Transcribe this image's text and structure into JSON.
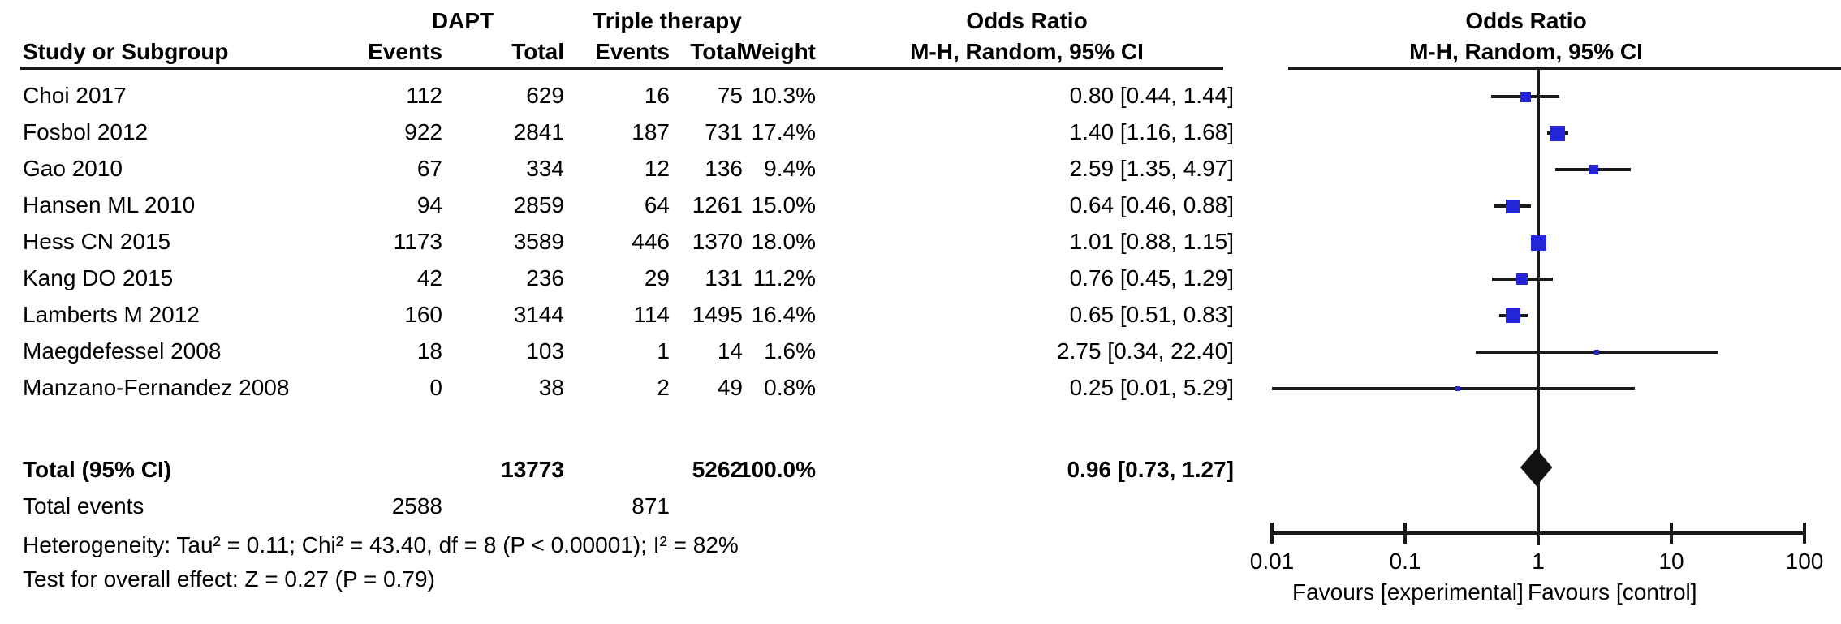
{
  "table": {
    "headers": {
      "study": "Study or Subgroup",
      "group1": "DAPT",
      "group2": "Triple therapy",
      "events": "Events",
      "total": "Total",
      "weight": "Weight",
      "or_title_left": "Odds Ratio",
      "or_sub_left": "M-H, Random, 95% CI",
      "or_title_right": "Odds Ratio",
      "or_sub_right": "M-H, Random, 95% CI"
    },
    "rows": [
      {
        "study": "Choi 2017",
        "e1": "112",
        "t1": "629",
        "e2": "16",
        "t2": "75",
        "weight": "10.3%",
        "or_text": "0.80 [0.44, 1.44]"
      },
      {
        "study": "Fosbol 2012",
        "e1": "922",
        "t1": "2841",
        "e2": "187",
        "t2": "731",
        "weight": "17.4%",
        "or_text": "1.40 [1.16, 1.68]"
      },
      {
        "study": "Gao 2010",
        "e1": "67",
        "t1": "334",
        "e2": "12",
        "t2": "136",
        "weight": "9.4%",
        "or_text": "2.59 [1.35, 4.97]"
      },
      {
        "study": "Hansen ML 2010",
        "e1": "94",
        "t1": "2859",
        "e2": "64",
        "t2": "1261",
        "weight": "15.0%",
        "or_text": "0.64 [0.46, 0.88]"
      },
      {
        "study": "Hess CN 2015",
        "e1": "1173",
        "t1": "3589",
        "e2": "446",
        "t2": "1370",
        "weight": "18.0%",
        "or_text": "1.01 [0.88, 1.15]"
      },
      {
        "study": "Kang DO 2015",
        "e1": "42",
        "t1": "236",
        "e2": "29",
        "t2": "131",
        "weight": "11.2%",
        "or_text": "0.76 [0.45, 1.29]"
      },
      {
        "study": "Lamberts M 2012",
        "e1": "160",
        "t1": "3144",
        "e2": "114",
        "t2": "1495",
        "weight": "16.4%",
        "or_text": "0.65 [0.51, 0.83]"
      },
      {
        "study": "Maegdefessel 2008",
        "e1": "18",
        "t1": "103",
        "e2": "1",
        "t2": "14",
        "weight": "1.6%",
        "or_text": "2.75 [0.34, 22.40]"
      },
      {
        "study": "Manzano-Fernandez 2008",
        "e1": "0",
        "t1": "38",
        "e2": "2",
        "t2": "49",
        "weight": "0.8%",
        "or_text": "0.25 [0.01, 5.29]"
      }
    ],
    "total_row": {
      "label": "Total (95% CI)",
      "t1": "13773",
      "t2": "5262",
      "weight": "100.0%",
      "or_text": "0.96 [0.73, 1.27]"
    },
    "total_events": {
      "label": "Total events",
      "e1": "2588",
      "e2": "871"
    },
    "heterogeneity": "Heterogeneity: Tau² = 0.11; Chi² = 43.40, df = 8 (P < 0.00001); I² = 82%",
    "overall_effect": "Test for overall effect: Z = 0.27 (P = 0.79)"
  },
  "chart_data": {
    "type": "forest",
    "effect_measure": "Odds Ratio, M-H, Random, 95% CI",
    "x_scale": "log",
    "x_range": [
      0.01,
      100
    ],
    "x_ticks": [
      0.01,
      0.1,
      1,
      10,
      100
    ],
    "x_tick_labels": [
      "0.01",
      "0.1",
      "1",
      "10",
      "100"
    ],
    "favours_left": "Favours [experimental]",
    "favours_right": "Favours [control]",
    "marker_color": "#2424d9",
    "line_color": "#1a1a1a",
    "studies": [
      {
        "name": "Choi 2017",
        "or": 0.8,
        "lo": 0.44,
        "hi": 1.44,
        "weight": 10.3
      },
      {
        "name": "Fosbol 2012",
        "or": 1.4,
        "lo": 1.16,
        "hi": 1.68,
        "weight": 17.4
      },
      {
        "name": "Gao 2010",
        "or": 2.59,
        "lo": 1.35,
        "hi": 4.97,
        "weight": 9.4
      },
      {
        "name": "Hansen ML 2010",
        "or": 0.64,
        "lo": 0.46,
        "hi": 0.88,
        "weight": 15.0
      },
      {
        "name": "Hess CN 2015",
        "or": 1.01,
        "lo": 0.88,
        "hi": 1.15,
        "weight": 18.0
      },
      {
        "name": "Kang DO 2015",
        "or": 0.76,
        "lo": 0.45,
        "hi": 1.29,
        "weight": 11.2
      },
      {
        "name": "Lamberts M 2012",
        "or": 0.65,
        "lo": 0.51,
        "hi": 0.83,
        "weight": 16.4
      },
      {
        "name": "Maegdefessel 2008",
        "or": 2.75,
        "lo": 0.34,
        "hi": 22.4,
        "weight": 1.6
      },
      {
        "name": "Manzano-Fernandez 2008",
        "or": 0.25,
        "lo": 0.01,
        "hi": 5.29,
        "weight": 0.8
      }
    ],
    "total": {
      "or": 0.96,
      "lo": 0.73,
      "hi": 1.27,
      "weight": 100.0
    }
  }
}
